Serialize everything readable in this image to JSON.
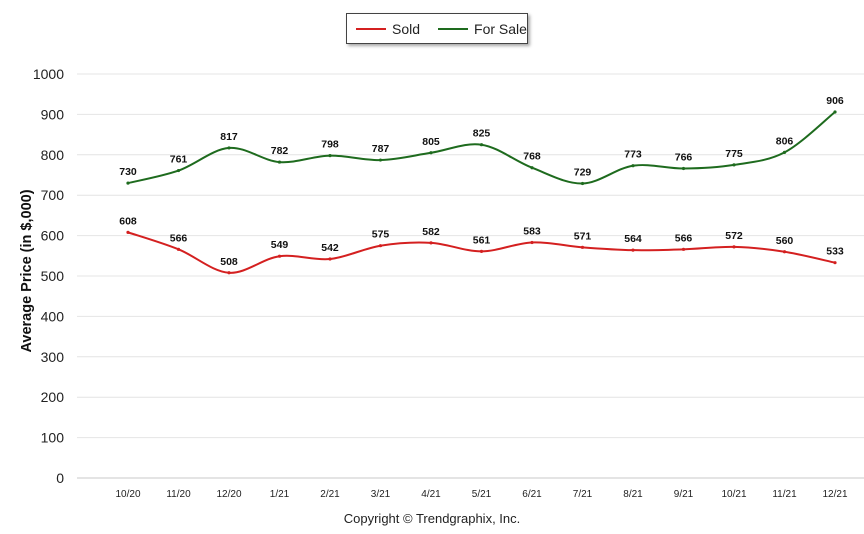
{
  "chart_data": {
    "type": "line",
    "title": "",
    "xlabel": "",
    "ylabel": "Average Price (in $,000)",
    "ylim": [
      0,
      1000
    ],
    "yticks": [
      0,
      100,
      200,
      300,
      400,
      500,
      600,
      700,
      800,
      900,
      1000
    ],
    "grid": true,
    "legend_position": "top-center",
    "categories": [
      "10/20",
      "11/20",
      "12/20",
      "1/21",
      "2/21",
      "3/21",
      "4/21",
      "5/21",
      "6/21",
      "7/21",
      "8/21",
      "9/21",
      "10/21",
      "11/21",
      "12/21"
    ],
    "series": [
      {
        "name": "Sold",
        "color": "#d42020",
        "values": [
          608,
          566,
          508,
          549,
          542,
          575,
          582,
          561,
          583,
          571,
          564,
          566,
          572,
          560,
          533
        ]
      },
      {
        "name": "For Sale",
        "color": "#1e6b1e",
        "values": [
          730,
          761,
          817,
          782,
          798,
          787,
          805,
          825,
          768,
          729,
          773,
          766,
          775,
          806,
          906
        ]
      }
    ]
  },
  "legend": {
    "sold_label": "Sold",
    "forsale_label": "For Sale"
  },
  "footer": {
    "copyright": "Copyright © Trendgraphix, Inc."
  }
}
